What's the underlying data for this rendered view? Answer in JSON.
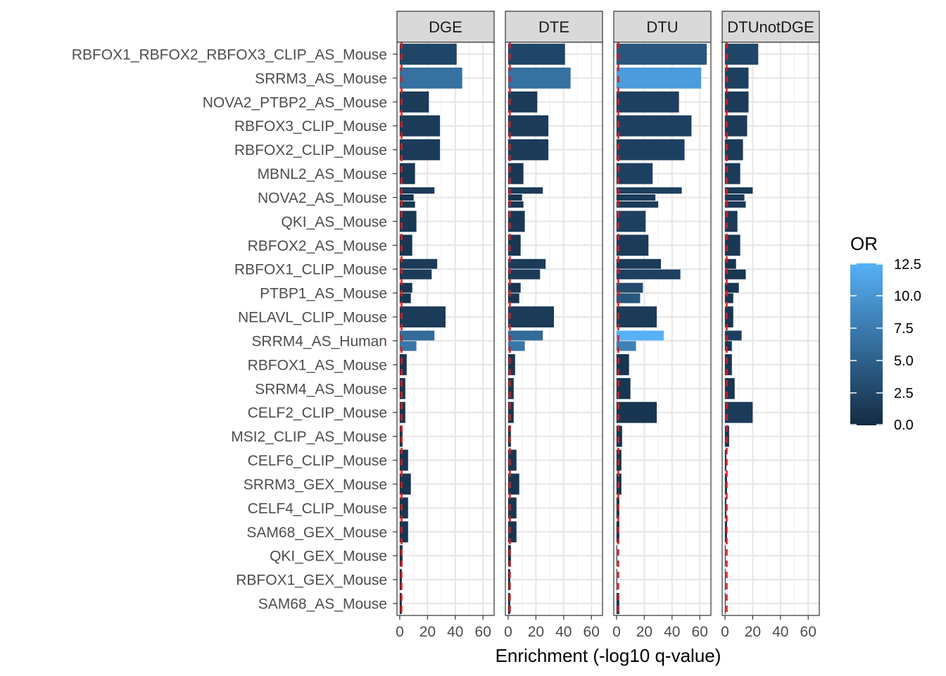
{
  "chart_data": {
    "type": "bar",
    "orientation": "horizontal",
    "facets": [
      "DGE",
      "DTE",
      "DTU",
      "DTUnotDGE"
    ],
    "xlabel": "Enrichment (-log10 q-value)",
    "x_ticks": [
      "0",
      "20",
      "40",
      "60"
    ],
    "xlim": [
      -2,
      68
    ],
    "reference_line": {
      "x": 1.3,
      "color": "#e41a1c",
      "style": "dashed"
    },
    "grid": true,
    "legend": {
      "title": "OR",
      "position": "right",
      "ticks": [
        "0.0",
        "2.5",
        "5.0",
        "7.5",
        "10.0",
        "12.5"
      ],
      "range": [
        0,
        12.5
      ],
      "colors": [
        "#132b43",
        "#56b1f7"
      ]
    },
    "categories": [
      "RBFOX1_RBFOX2_RBFOX3_CLIP_AS_Mouse",
      "SRRM3_AS_Mouse",
      "NOVA2_PTBP2_AS_Mouse",
      "RBFOX3_CLIP_Mouse",
      "RBFOX2_CLIP_Mouse",
      "MBNL2_AS_Mouse",
      "NOVA2_AS_Mouse",
      "QKI_AS_Mouse",
      "RBFOX2_AS_Mouse",
      "RBFOX1_CLIP_Mouse",
      "PTBP1_AS_Mouse",
      "NELAVL_CLIP_Mouse",
      "SRRM4_AS_Human",
      "RBFOX1_AS_Mouse",
      "SRRM4_AS_Mouse",
      "CELF2_CLIP_Mouse",
      "MSI2_CLIP_AS_Mouse",
      "CELF6_CLIP_Mouse",
      "SRRM3_GEX_Mouse",
      "CELF4_CLIP_Mouse",
      "SAM68_GEX_Mouse",
      "QKI_GEX_Mouse",
      "RBFOX1_GEX_Mouse",
      "SAM68_AS_Mouse"
    ],
    "series": [
      {
        "facet": "DGE",
        "values": [
          [
            [
              41,
              2.5
            ]
          ],
          [
            [
              45,
              6.5
            ]
          ],
          [
            [
              21,
              1.5
            ]
          ],
          [
            [
              29,
              1.5
            ]
          ],
          [
            [
              29,
              1.5
            ]
          ],
          [
            [
              11,
              1.2
            ]
          ],
          [
            [
              25,
              1.5
            ],
            [
              10,
              1.0
            ],
            [
              11,
              1.0
            ]
          ],
          [
            [
              12,
              1.2
            ]
          ],
          [
            [
              9,
              1.0
            ]
          ],
          [
            [
              27,
              1.5
            ],
            [
              23,
              1.5
            ]
          ],
          [
            [
              9,
              1.0
            ],
            [
              8,
              1.0
            ]
          ],
          [
            [
              33,
              1.5
            ]
          ],
          [
            [
              25,
              6.0
            ],
            [
              12,
              7.0
            ]
          ],
          [
            [
              5,
              1.0
            ]
          ],
          [
            [
              4,
              1.0
            ]
          ],
          [
            [
              4,
              1.0
            ]
          ],
          [
            [
              2,
              0.8
            ]
          ],
          [
            [
              6,
              1.0
            ]
          ],
          [
            [
              8,
              1.0
            ]
          ],
          [
            [
              6,
              1.0
            ]
          ],
          [
            [
              6,
              1.0
            ]
          ],
          [
            [
              2,
              0.5
            ]
          ],
          [
            [
              1.5,
              0.5
            ]
          ],
          [
            [
              1.5,
              0.5
            ]
          ]
        ]
      },
      {
        "facet": "DTE",
        "values": [
          [
            [
              41,
              2.5
            ]
          ],
          [
            [
              45,
              6.5
            ]
          ],
          [
            [
              21,
              1.5
            ]
          ],
          [
            [
              29,
              1.5
            ]
          ],
          [
            [
              29,
              1.5
            ]
          ],
          [
            [
              11,
              1.2
            ]
          ],
          [
            [
              25,
              1.5
            ],
            [
              10,
              1.0
            ],
            [
              11,
              1.0
            ]
          ],
          [
            [
              12,
              1.2
            ]
          ],
          [
            [
              9,
              1.0
            ]
          ],
          [
            [
              27,
              1.5
            ],
            [
              23,
              1.5
            ]
          ],
          [
            [
              9,
              1.0
            ],
            [
              8,
              1.0
            ]
          ],
          [
            [
              33,
              1.5
            ]
          ],
          [
            [
              25,
              6.0
            ],
            [
              12,
              7.0
            ]
          ],
          [
            [
              5,
              1.0
            ]
          ],
          [
            [
              4,
              1.0
            ]
          ],
          [
            [
              4,
              1.0
            ]
          ],
          [
            [
              2,
              0.8
            ]
          ],
          [
            [
              6,
              1.0
            ]
          ],
          [
            [
              8,
              1.0
            ]
          ],
          [
            [
              6,
              1.0
            ]
          ],
          [
            [
              6,
              1.0
            ]
          ],
          [
            [
              2,
              0.5
            ]
          ],
          [
            [
              1.5,
              0.5
            ]
          ],
          [
            [
              1.5,
              0.5
            ]
          ]
        ]
      },
      {
        "facet": "DTU",
        "values": [
          [
            [
              65,
              4.0
            ]
          ],
          [
            [
              61,
              10.5
            ]
          ],
          [
            [
              45,
              2.0
            ]
          ],
          [
            [
              54,
              2.0
            ]
          ],
          [
            [
              49,
              2.0
            ]
          ],
          [
            [
              26,
              2.0
            ]
          ],
          [
            [
              47,
              2.0
            ],
            [
              28,
              1.5
            ],
            [
              30,
              1.5
            ]
          ],
          [
            [
              21,
              2.0
            ]
          ],
          [
            [
              23,
              1.5
            ]
          ],
          [
            [
              32,
              1.5
            ],
            [
              46,
              2.0
            ]
          ],
          [
            [
              19,
              3.0
            ],
            [
              17,
              4.0
            ]
          ],
          [
            [
              29,
              1.5
            ]
          ],
          [
            [
              34,
              12.5
            ],
            [
              14,
              8.0
            ]
          ],
          [
            [
              9,
              1.0
            ]
          ],
          [
            [
              10,
              1.0
            ]
          ],
          [
            [
              29,
              1.0
            ]
          ],
          [
            [
              4,
              1.0
            ]
          ],
          [
            [
              3.5,
              1.0
            ]
          ],
          [
            [
              3.5,
              1.0
            ]
          ],
          [
            [
              2,
              0.8
            ]
          ],
          [
            [
              2,
              0.8
            ]
          ],
          [
            [
              0.5,
              0.2
            ]
          ],
          [
            [
              0.5,
              0.2
            ]
          ],
          [
            [
              2,
              0.8
            ]
          ]
        ]
      },
      {
        "facet": "DTUnotDGE",
        "values": [
          [
            [
              24,
              2.5
            ]
          ],
          [
            [
              17,
              2.0
            ]
          ],
          [
            [
              17,
              1.5
            ]
          ],
          [
            [
              16,
              1.5
            ]
          ],
          [
            [
              13,
              1.5
            ]
          ],
          [
            [
              11,
              1.5
            ]
          ],
          [
            [
              20,
              1.5
            ],
            [
              14,
              1.5
            ],
            [
              15,
              1.5
            ]
          ],
          [
            [
              9,
              1.5
            ]
          ],
          [
            [
              11,
              1.2
            ]
          ],
          [
            [
              8,
              1.0
            ],
            [
              15,
              1.0
            ]
          ],
          [
            [
              10,
              1.0
            ],
            [
              6,
              1.0
            ]
          ],
          [
            [
              6,
              1.0
            ]
          ],
          [
            [
              12,
              2.0
            ],
            [
              5,
              1.0
            ]
          ],
          [
            [
              5,
              1.0
            ]
          ],
          [
            [
              7,
              1.0
            ]
          ],
          [
            [
              20,
              1.5
            ]
          ],
          [
            [
              3,
              0.8
            ]
          ],
          [
            [
              1,
              0.5
            ]
          ],
          [
            [
              1.5,
              0.5
            ]
          ],
          [
            [
              1,
              0.5
            ]
          ],
          [
            [
              1.5,
              0.5
            ]
          ],
          [
            [
              0.5,
              0.2
            ]
          ],
          [
            [
              0.5,
              0.2
            ]
          ],
          [
            [
              0.5,
              0.2
            ]
          ]
        ]
      }
    ]
  }
}
